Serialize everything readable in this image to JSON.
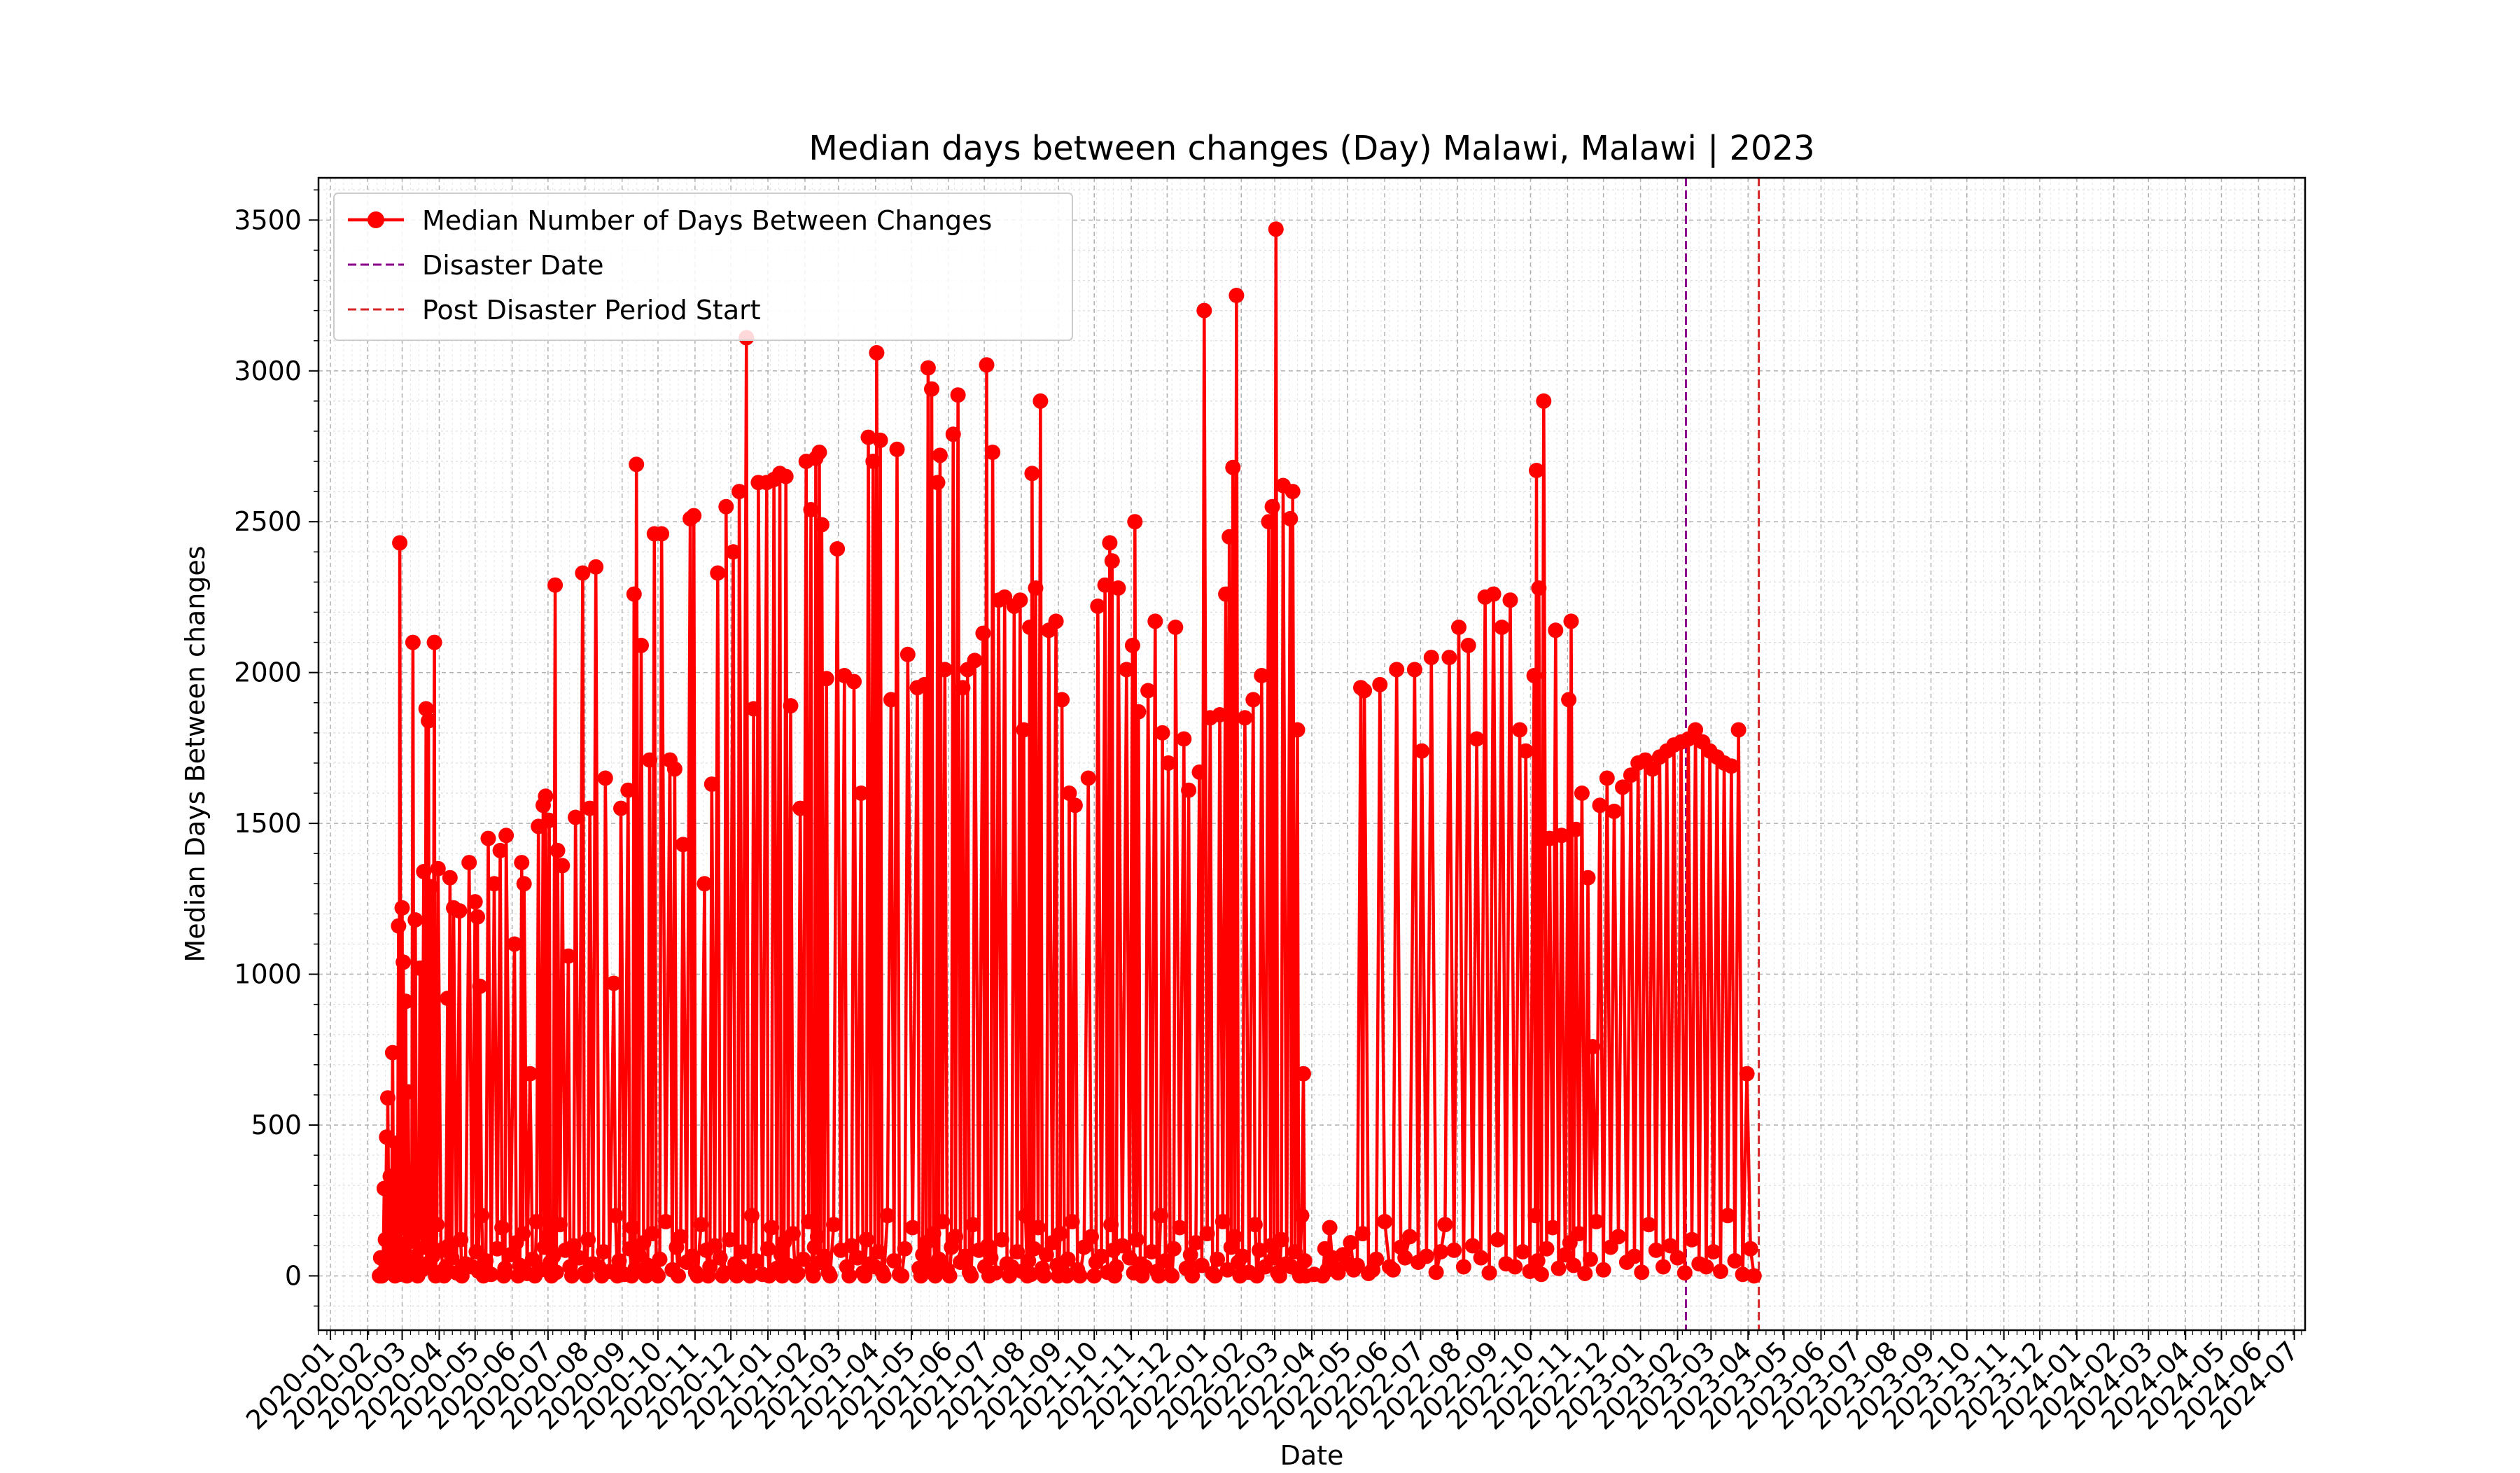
{
  "chart_data": {
    "type": "line",
    "title": "Median days between changes (Day) Malawi, Malawi | 2023",
    "xlabel": "Date",
    "ylabel": "Median Days Between changes",
    "xlim": [
      "2019-12-22",
      "2024-07-10"
    ],
    "ylim": [
      -180,
      3640
    ],
    "grid": true,
    "legend_position": "top-left",
    "y_ticks": [
      0,
      500,
      1000,
      1500,
      2000,
      2500,
      3000,
      3500
    ],
    "x_ticks": [
      "2020-01",
      "2020-02",
      "2020-03",
      "2020-04",
      "2020-05",
      "2020-06",
      "2020-07",
      "2020-08",
      "2020-09",
      "2020-10",
      "2020-11",
      "2020-12",
      "2021-01",
      "2021-02",
      "2021-03",
      "2021-04",
      "2021-05",
      "2021-06",
      "2021-07",
      "2021-08",
      "2021-09",
      "2021-10",
      "2021-11",
      "2021-12",
      "2022-01",
      "2022-02",
      "2022-03",
      "2022-04",
      "2022-05",
      "2022-06",
      "2022-07",
      "2022-08",
      "2022-09",
      "2022-10",
      "2022-11",
      "2022-12",
      "2023-01",
      "2023-02",
      "2023-03",
      "2023-04",
      "2023-05",
      "2023-06",
      "2023-07",
      "2023-08",
      "2023-09",
      "2023-10",
      "2023-11",
      "2023-12",
      "2024-01",
      "2024-02",
      "2024-03",
      "2024-04",
      "2024-05",
      "2024-06",
      "2024-07"
    ],
    "series": [
      {
        "name": "Median Number of Days Between Changes",
        "color": "#ff0000",
        "marker": "circle",
        "points": [
          [
            "2020-02-11",
            0
          ],
          [
            "2020-02-15",
            290
          ],
          [
            "2020-02-17",
            460
          ],
          [
            "2020-02-18",
            590
          ],
          [
            "2020-02-20",
            330
          ],
          [
            "2020-02-22",
            740
          ],
          [
            "2020-02-25",
            440
          ],
          [
            "2020-02-27",
            1160
          ],
          [
            "2020-02-28",
            2430
          ],
          [
            "2020-03-01",
            1220
          ],
          [
            "2020-03-02",
            1040
          ],
          [
            "2020-03-04",
            910
          ],
          [
            "2020-03-06",
            610
          ],
          [
            "2020-03-08",
            350
          ],
          [
            "2020-03-10",
            2100
          ],
          [
            "2020-03-12",
            1180
          ],
          [
            "2020-03-16",
            1020
          ],
          [
            "2020-03-19",
            1340
          ],
          [
            "2020-03-21",
            1880
          ],
          [
            "2020-03-23",
            1840
          ],
          [
            "2020-03-25",
            1290
          ],
          [
            "2020-03-28",
            2100
          ],
          [
            "2020-03-31",
            1350
          ],
          [
            "2020-04-08",
            920
          ],
          [
            "2020-04-10",
            1320
          ],
          [
            "2020-04-13",
            1220
          ],
          [
            "2020-04-18",
            1210
          ],
          [
            "2020-04-26",
            1370
          ],
          [
            "2020-05-01",
            1240
          ],
          [
            "2020-05-03",
            1190
          ],
          [
            "2020-05-05",
            960
          ],
          [
            "2020-05-12",
            1450
          ],
          [
            "2020-05-17",
            1300
          ],
          [
            "2020-05-22",
            1410
          ],
          [
            "2020-05-27",
            1460
          ],
          [
            "2020-06-03",
            1100
          ],
          [
            "2020-06-09",
            1370
          ],
          [
            "2020-06-11",
            1300
          ],
          [
            "2020-06-16",
            670
          ],
          [
            "2020-06-23",
            1490
          ],
          [
            "2020-06-27",
            1560
          ],
          [
            "2020-06-29",
            1590
          ],
          [
            "2020-07-02",
            1510
          ],
          [
            "2020-07-07",
            2290
          ],
          [
            "2020-07-09",
            1410
          ],
          [
            "2020-07-13",
            1360
          ],
          [
            "2020-07-18",
            1060
          ],
          [
            "2020-07-24",
            1520
          ],
          [
            "2020-07-30",
            2330
          ],
          [
            "2020-08-05",
            1550
          ],
          [
            "2020-08-10",
            2350
          ],
          [
            "2020-08-18",
            1650
          ],
          [
            "2020-08-25",
            970
          ],
          [
            "2020-08-31",
            1550
          ],
          [
            "2020-09-06",
            1610
          ],
          [
            "2020-09-11",
            2260
          ],
          [
            "2020-09-13",
            2690
          ],
          [
            "2020-09-17",
            2090
          ],
          [
            "2020-09-24",
            1710
          ],
          [
            "2020-09-28",
            2460
          ],
          [
            "2020-10-04",
            2460
          ],
          [
            "2020-10-11",
            1710
          ],
          [
            "2020-10-15",
            1680
          ],
          [
            "2020-10-22",
            1430
          ],
          [
            "2020-10-28",
            2510
          ],
          [
            "2020-10-31",
            2520
          ],
          [
            "2020-11-09",
            1300
          ],
          [
            "2020-11-15",
            1630
          ],
          [
            "2020-11-20",
            2330
          ],
          [
            "2020-11-27",
            2550
          ],
          [
            "2020-12-03",
            2400
          ],
          [
            "2020-12-08",
            2600
          ],
          [
            "2020-12-14",
            3110
          ],
          [
            "2020-12-20",
            1880
          ],
          [
            "2020-12-24",
            2630
          ],
          [
            "2020-12-31",
            2630
          ],
          [
            "2021-01-06",
            2640
          ],
          [
            "2021-01-11",
            2660
          ],
          [
            "2021-01-16",
            2650
          ],
          [
            "2021-01-20",
            1890
          ],
          [
            "2021-01-28",
            1550
          ],
          [
            "2021-02-02",
            2700
          ],
          [
            "2021-02-06",
            2540
          ],
          [
            "2021-02-10",
            2710
          ],
          [
            "2021-02-13",
            2730
          ],
          [
            "2021-02-15",
            2490
          ],
          [
            "2021-02-19",
            1980
          ],
          [
            "2021-02-28",
            2410
          ],
          [
            "2021-03-06",
            1990
          ],
          [
            "2021-03-14",
            1970
          ],
          [
            "2021-03-20",
            1600
          ],
          [
            "2021-03-26",
            2780
          ],
          [
            "2021-03-30",
            2700
          ],
          [
            "2021-04-02",
            3060
          ],
          [
            "2021-04-05",
            2770
          ],
          [
            "2021-04-14",
            1910
          ],
          [
            "2021-04-19",
            2740
          ],
          [
            "2021-04-28",
            2060
          ],
          [
            "2021-05-06",
            1950
          ],
          [
            "2021-05-12",
            1960
          ],
          [
            "2021-05-15",
            3010
          ],
          [
            "2021-05-18",
            2940
          ],
          [
            "2021-05-23",
            2630
          ],
          [
            "2021-05-25",
            2720
          ],
          [
            "2021-05-29",
            2010
          ],
          [
            "2021-06-05",
            2790
          ],
          [
            "2021-06-09",
            2920
          ],
          [
            "2021-06-13",
            1950
          ],
          [
            "2021-06-17",
            2010
          ],
          [
            "2021-06-23",
            2040
          ],
          [
            "2021-06-30",
            2130
          ],
          [
            "2021-07-03",
            3020
          ],
          [
            "2021-07-08",
            2730
          ],
          [
            "2021-07-13",
            2240
          ],
          [
            "2021-07-18",
            2250
          ],
          [
            "2021-07-26",
            2220
          ],
          [
            "2021-07-31",
            2240
          ],
          [
            "2021-08-03",
            1810
          ],
          [
            "2021-08-08",
            2150
          ],
          [
            "2021-08-10",
            2660
          ],
          [
            "2021-08-13",
            2280
          ],
          [
            "2021-08-17",
            2900
          ],
          [
            "2021-08-24",
            2140
          ],
          [
            "2021-08-30",
            2170
          ],
          [
            "2021-09-04",
            1910
          ],
          [
            "2021-09-10",
            1600
          ],
          [
            "2021-09-15",
            1560
          ],
          [
            "2021-09-26",
            1650
          ],
          [
            "2021-10-04",
            2220
          ],
          [
            "2021-10-10",
            2290
          ],
          [
            "2021-10-14",
            2430
          ],
          [
            "2021-10-16",
            2370
          ],
          [
            "2021-10-21",
            2280
          ],
          [
            "2021-10-28",
            2010
          ],
          [
            "2021-11-02",
            2090
          ],
          [
            "2021-11-04",
            2500
          ],
          [
            "2021-11-07",
            1870
          ],
          [
            "2021-11-15",
            1940
          ],
          [
            "2021-11-21",
            2170
          ],
          [
            "2021-11-27",
            1800
          ],
          [
            "2021-12-02",
            1700
          ],
          [
            "2021-12-08",
            2150
          ],
          [
            "2021-12-15",
            1780
          ],
          [
            "2021-12-19",
            1610
          ],
          [
            "2021-12-28",
            1670
          ],
          [
            "2022-01-01",
            3200
          ],
          [
            "2022-01-06",
            1850
          ],
          [
            "2022-01-14",
            1860
          ],
          [
            "2022-01-19",
            2260
          ],
          [
            "2022-01-22",
            2450
          ],
          [
            "2022-01-25",
            2680
          ],
          [
            "2022-01-28",
            3250
          ],
          [
            "2022-02-04",
            1850
          ],
          [
            "2022-02-11",
            1910
          ],
          [
            "2022-02-18",
            1990
          ],
          [
            "2022-02-24",
            2500
          ],
          [
            "2022-02-27",
            2550
          ],
          [
            "2022-03-02",
            3470
          ],
          [
            "2022-03-08",
            2620
          ],
          [
            "2022-03-14",
            2510
          ],
          [
            "2022-03-16",
            2600
          ],
          [
            "2022-03-20",
            1810
          ],
          [
            "2022-03-25",
            670
          ],
          [
            "2022-04-10",
            0
          ],
          [
            "2022-04-14",
            20
          ],
          [
            "2022-04-18",
            60
          ],
          [
            "2022-04-23",
            10
          ],
          [
            "2022-05-01",
            40
          ],
          [
            "2022-05-06",
            20
          ],
          [
            "2022-05-12",
            1950
          ],
          [
            "2022-05-15",
            1940
          ],
          [
            "2022-05-22",
            20
          ],
          [
            "2022-05-28",
            1960
          ],
          [
            "2022-06-05",
            30
          ],
          [
            "2022-06-11",
            2010
          ],
          [
            "2022-06-18",
            60
          ],
          [
            "2022-06-26",
            2010
          ],
          [
            "2022-07-02",
            1740
          ],
          [
            "2022-07-10",
            2050
          ],
          [
            "2022-07-18",
            80
          ],
          [
            "2022-07-25",
            2050
          ],
          [
            "2022-08-02",
            2150
          ],
          [
            "2022-08-10",
            2090
          ],
          [
            "2022-08-17",
            1780
          ],
          [
            "2022-08-24",
            2250
          ],
          [
            "2022-08-31",
            2260
          ],
          [
            "2022-09-07",
            2150
          ],
          [
            "2022-09-14",
            2240
          ],
          [
            "2022-09-22",
            1810
          ],
          [
            "2022-09-27",
            1740
          ],
          [
            "2022-10-04",
            1990
          ],
          [
            "2022-10-06",
            2670
          ],
          [
            "2022-10-08",
            2280
          ],
          [
            "2022-10-12",
            2900
          ],
          [
            "2022-10-17",
            1450
          ],
          [
            "2022-10-22",
            2140
          ],
          [
            "2022-10-27",
            1460
          ],
          [
            "2022-11-02",
            1910
          ],
          [
            "2022-11-04",
            2170
          ],
          [
            "2022-11-08",
            1480
          ],
          [
            "2022-11-13",
            1600
          ],
          [
            "2022-11-18",
            1320
          ],
          [
            "2022-11-22",
            760
          ],
          [
            "2022-11-28",
            1560
          ],
          [
            "2022-12-04",
            1650
          ],
          [
            "2022-12-10",
            1540
          ],
          [
            "2022-12-17",
            1620
          ],
          [
            "2022-12-24",
            1660
          ],
          [
            "2022-12-30",
            1700
          ],
          [
            "2023-01-05",
            1710
          ],
          [
            "2023-01-11",
            1680
          ],
          [
            "2023-01-17",
            1720
          ],
          [
            "2023-01-23",
            1740
          ],
          [
            "2023-01-29",
            1760
          ],
          [
            "2023-02-04",
            1770
          ],
          [
            "2023-02-10",
            1780
          ],
          [
            "2023-02-16",
            1810
          ],
          [
            "2023-02-22",
            1770
          ],
          [
            "2023-02-28",
            1740
          ],
          [
            "2023-03-06",
            1720
          ],
          [
            "2023-03-12",
            1700
          ],
          [
            "2023-03-18",
            1690
          ],
          [
            "2023-03-24",
            1810
          ],
          [
            "2023-03-31",
            670
          ],
          [
            "2023-04-06",
            0
          ]
        ],
        "baseline_dates": [
          "2020-02-13",
          "2020-02-24",
          "2020-03-05",
          "2020-03-14",
          "2020-03-29",
          "2020-04-05",
          "2020-04-20",
          "2020-05-08",
          "2020-05-25",
          "2020-06-06",
          "2020-06-20",
          "2020-07-04",
          "2020-07-21",
          "2020-08-02",
          "2020-08-15",
          "2020-08-28",
          "2020-09-09",
          "2020-09-21",
          "2020-10-01",
          "2020-10-18",
          "2020-11-03",
          "2020-11-12",
          "2020-11-24",
          "2020-12-06",
          "2020-12-17",
          "2021-01-02",
          "2021-01-13",
          "2021-01-24",
          "2021-02-08",
          "2021-02-22",
          "2021-03-10",
          "2021-03-23",
          "2021-04-08",
          "2021-04-23",
          "2021-05-09",
          "2021-05-21",
          "2021-06-02",
          "2021-06-20",
          "2021-07-05",
          "2021-07-22",
          "2021-08-06",
          "2021-08-20",
          "2021-09-01",
          "2021-09-08",
          "2021-09-19",
          "2021-10-01",
          "2021-10-18",
          "2021-11-10",
          "2021-11-24",
          "2021-12-05",
          "2021-12-22",
          "2022-01-10",
          "2022-01-31",
          "2022-02-14",
          "2022-03-05",
          "2022-03-22",
          "2022-03-27"
        ],
        "dense_fill_values": [
          60,
          10,
          120,
          40,
          30,
          80,
          15,
          200,
          50,
          5,
          90,
          160,
          25,
          70,
          110,
          35,
          140,
          8,
          55,
          180,
          20,
          95,
          130,
          45,
          65,
          12,
          170,
          85,
          30,
          100
        ]
      }
    ],
    "vlines": [
      {
        "name": "Disaster Date",
        "date": "2023-02-08",
        "color": "#8b008b",
        "style": "dashed"
      },
      {
        "name": "Post Disaster Period Start",
        "date": "2023-04-10",
        "color": "#d62728",
        "style": "dashed"
      }
    ]
  }
}
